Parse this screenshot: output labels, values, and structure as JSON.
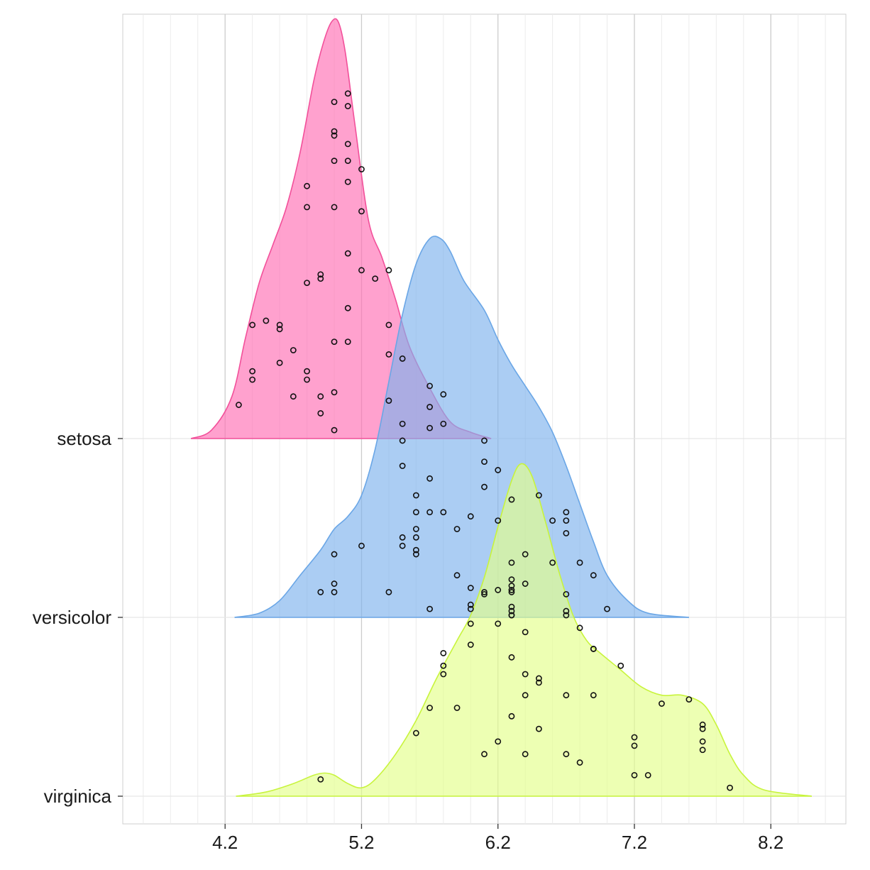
{
  "chart_data": {
    "type": "ridgeline",
    "title": "",
    "xlabel": "",
    "ylabel": "",
    "xlim": [
      3.45,
      8.75
    ],
    "x_ticks": [
      "4.2",
      "5.2",
      "6.2",
      "7.2",
      "8.2"
    ],
    "x_tick_values": [
      4.2,
      5.2,
      6.2,
      7.2,
      8.2
    ],
    "grid": true,
    "legend": "none",
    "series": [
      {
        "name": "setosa",
        "fill": "#ff6eb4",
        "stroke": "#f2509a",
        "density": [
          [
            3.95,
            0
          ],
          [
            4.1,
            0.02
          ],
          [
            4.25,
            0.1
          ],
          [
            4.35,
            0.24
          ],
          [
            4.45,
            0.37
          ],
          [
            4.55,
            0.46
          ],
          [
            4.65,
            0.55
          ],
          [
            4.75,
            0.68
          ],
          [
            4.85,
            0.85
          ],
          [
            4.92,
            0.94
          ],
          [
            4.98,
            0.99
          ],
          [
            5.03,
            0.99
          ],
          [
            5.08,
            0.92
          ],
          [
            5.15,
            0.75
          ],
          [
            5.25,
            0.52
          ],
          [
            5.35,
            0.43
          ],
          [
            5.45,
            0.33
          ],
          [
            5.55,
            0.22
          ],
          [
            5.7,
            0.12
          ],
          [
            5.85,
            0.04
          ],
          [
            6.0,
            0.015
          ],
          [
            6.15,
            0
          ]
        ],
        "points": [
          [
            5.1,
            0.82
          ],
          [
            5.0,
            0.8
          ],
          [
            5.1,
            0.79
          ],
          [
            5.0,
            0.73
          ],
          [
            5.0,
            0.72
          ],
          [
            5.1,
            0.7
          ],
          [
            5.0,
            0.66
          ],
          [
            5.1,
            0.66
          ],
          [
            5.2,
            0.64
          ],
          [
            5.1,
            0.61
          ],
          [
            4.8,
            0.6
          ],
          [
            4.8,
            0.55
          ],
          [
            5.0,
            0.55
          ],
          [
            5.2,
            0.54
          ],
          [
            5.1,
            0.44
          ],
          [
            5.2,
            0.4
          ],
          [
            5.4,
            0.4
          ],
          [
            4.9,
            0.39
          ],
          [
            4.9,
            0.38
          ],
          [
            5.3,
            0.38
          ],
          [
            4.8,
            0.37
          ],
          [
            5.1,
            0.31
          ],
          [
            4.5,
            0.28
          ],
          [
            4.4,
            0.27
          ],
          [
            4.6,
            0.27
          ],
          [
            4.6,
            0.26
          ],
          [
            5.4,
            0.27
          ],
          [
            5.0,
            0.23
          ],
          [
            5.1,
            0.23
          ],
          [
            4.7,
            0.21
          ],
          [
            5.4,
            0.2
          ],
          [
            5.5,
            0.19
          ],
          [
            4.6,
            0.18
          ],
          [
            4.4,
            0.16
          ],
          [
            4.8,
            0.16
          ],
          [
            4.4,
            0.14
          ],
          [
            4.8,
            0.14
          ],
          [
            5.0,
            0.11
          ],
          [
            4.7,
            0.1
          ],
          [
            4.9,
            0.1
          ],
          [
            5.4,
            0.09
          ],
          [
            4.3,
            0.08
          ],
          [
            4.9,
            0.06
          ],
          [
            5.0,
            0.02
          ]
        ]
      },
      {
        "name": "versicolor",
        "fill": "#7eb2ec",
        "stroke": "#6aa6e6",
        "density": [
          [
            4.27,
            0
          ],
          [
            4.45,
            0.01
          ],
          [
            4.6,
            0.04
          ],
          [
            4.75,
            0.1
          ],
          [
            4.9,
            0.16
          ],
          [
            5.0,
            0.21
          ],
          [
            5.1,
            0.24
          ],
          [
            5.2,
            0.29
          ],
          [
            5.3,
            0.4
          ],
          [
            5.4,
            0.56
          ],
          [
            5.5,
            0.72
          ],
          [
            5.6,
            0.84
          ],
          [
            5.7,
            0.9
          ],
          [
            5.78,
            0.9
          ],
          [
            5.85,
            0.87
          ],
          [
            5.95,
            0.8
          ],
          [
            6.1,
            0.73
          ],
          [
            6.2,
            0.66
          ],
          [
            6.3,
            0.6
          ],
          [
            6.4,
            0.55
          ],
          [
            6.5,
            0.5
          ],
          [
            6.6,
            0.44
          ],
          [
            6.7,
            0.36
          ],
          [
            6.8,
            0.27
          ],
          [
            6.9,
            0.18
          ],
          [
            7.0,
            0.1
          ],
          [
            7.15,
            0.04
          ],
          [
            7.3,
            0.01
          ],
          [
            7.6,
            0
          ]
        ],
        "points": [
          [
            5.7,
            0.55
          ],
          [
            5.8,
            0.53
          ],
          [
            5.7,
            0.5
          ],
          [
            5.8,
            0.46
          ],
          [
            5.5,
            0.46
          ],
          [
            5.7,
            0.45
          ],
          [
            5.5,
            0.42
          ],
          [
            6.1,
            0.42
          ],
          [
            6.1,
            0.37
          ],
          [
            5.5,
            0.36
          ],
          [
            6.2,
            0.35
          ],
          [
            5.7,
            0.33
          ],
          [
            6.1,
            0.31
          ],
          [
            5.6,
            0.29
          ],
          [
            6.5,
            0.29
          ],
          [
            6.3,
            0.28
          ],
          [
            5.6,
            0.25
          ],
          [
            5.7,
            0.25
          ],
          [
            5.8,
            0.25
          ],
          [
            6.0,
            0.24
          ],
          [
            6.2,
            0.23
          ],
          [
            6.7,
            0.25
          ],
          [
            6.6,
            0.23
          ],
          [
            6.7,
            0.23
          ],
          [
            5.6,
            0.21
          ],
          [
            5.9,
            0.21
          ],
          [
            6.7,
            0.2
          ],
          [
            5.5,
            0.19
          ],
          [
            5.6,
            0.19
          ],
          [
            5.5,
            0.17
          ],
          [
            5.2,
            0.17
          ],
          [
            5.6,
            0.16
          ],
          [
            5.6,
            0.15
          ],
          [
            5.0,
            0.15
          ],
          [
            6.4,
            0.15
          ],
          [
            6.3,
            0.13
          ],
          [
            6.6,
            0.13
          ],
          [
            6.8,
            0.13
          ],
          [
            5.9,
            0.1
          ],
          [
            6.9,
            0.1
          ],
          [
            6.3,
            0.09
          ],
          [
            5.0,
            0.08
          ],
          [
            6.4,
            0.08
          ],
          [
            6.0,
            0.07
          ],
          [
            5.4,
            0.06
          ],
          [
            4.9,
            0.06
          ],
          [
            5.0,
            0.06
          ],
          [
            6.1,
            0.06
          ],
          [
            6.3,
            0.06
          ],
          [
            6.0,
            0.03
          ],
          [
            5.7,
            0.02
          ],
          [
            7.0,
            0.02
          ],
          [
            6.0,
            0.02
          ]
        ]
      },
      {
        "name": "virginica",
        "fill": "#e3ff8a",
        "stroke": "#c8f43c",
        "density": [
          [
            4.28,
            0
          ],
          [
            4.5,
            0.01
          ],
          [
            4.7,
            0.03
          ],
          [
            4.85,
            0.05
          ],
          [
            4.93,
            0.055
          ],
          [
            5.0,
            0.05
          ],
          [
            5.1,
            0.03
          ],
          [
            5.2,
            0.02
          ],
          [
            5.3,
            0.04
          ],
          [
            5.45,
            0.1
          ],
          [
            5.6,
            0.18
          ],
          [
            5.75,
            0.28
          ],
          [
            5.9,
            0.37
          ],
          [
            6.0,
            0.43
          ],
          [
            6.1,
            0.52
          ],
          [
            6.2,
            0.64
          ],
          [
            6.3,
            0.75
          ],
          [
            6.37,
            0.79
          ],
          [
            6.45,
            0.76
          ],
          [
            6.55,
            0.65
          ],
          [
            6.65,
            0.53
          ],
          [
            6.75,
            0.43
          ],
          [
            6.85,
            0.37
          ],
          [
            6.95,
            0.34
          ],
          [
            7.1,
            0.3
          ],
          [
            7.25,
            0.26
          ],
          [
            7.4,
            0.24
          ],
          [
            7.55,
            0.24
          ],
          [
            7.7,
            0.22
          ],
          [
            7.8,
            0.17
          ],
          [
            7.9,
            0.1
          ],
          [
            8.0,
            0.05
          ],
          [
            8.15,
            0.015
          ],
          [
            8.5,
            0
          ]
        ],
        "points": [
          [
            6.3,
            0.5
          ],
          [
            6.3,
            0.49
          ],
          [
            6.2,
            0.49
          ],
          [
            6.7,
            0.48
          ],
          [
            6.1,
            0.48
          ],
          [
            6.3,
            0.45
          ],
          [
            6.3,
            0.44
          ],
          [
            6.3,
            0.43
          ],
          [
            6.7,
            0.44
          ],
          [
            6.3,
            0.43
          ],
          [
            6.7,
            0.43
          ],
          [
            6.2,
            0.41
          ],
          [
            6.0,
            0.41
          ],
          [
            6.8,
            0.4
          ],
          [
            6.4,
            0.39
          ],
          [
            6.0,
            0.36
          ],
          [
            6.9,
            0.35
          ],
          [
            6.9,
            0.35
          ],
          [
            5.8,
            0.34
          ],
          [
            6.3,
            0.33
          ],
          [
            7.1,
            0.31
          ],
          [
            5.8,
            0.31
          ],
          [
            6.4,
            0.29
          ],
          [
            6.5,
            0.28
          ],
          [
            5.8,
            0.29
          ],
          [
            6.5,
            0.27
          ],
          [
            6.4,
            0.24
          ],
          [
            6.7,
            0.24
          ],
          [
            6.9,
            0.24
          ],
          [
            7.6,
            0.23
          ],
          [
            7.4,
            0.22
          ],
          [
            5.7,
            0.21
          ],
          [
            5.9,
            0.21
          ],
          [
            6.3,
            0.19
          ],
          [
            7.7,
            0.17
          ],
          [
            7.7,
            0.16
          ],
          [
            6.5,
            0.16
          ],
          [
            5.6,
            0.15
          ],
          [
            7.2,
            0.14
          ],
          [
            7.7,
            0.13
          ],
          [
            6.2,
            0.13
          ],
          [
            7.2,
            0.12
          ],
          [
            7.7,
            0.11
          ],
          [
            6.1,
            0.1
          ],
          [
            6.4,
            0.1
          ],
          [
            6.7,
            0.1
          ],
          [
            6.8,
            0.08
          ],
          [
            7.2,
            0.05
          ],
          [
            7.3,
            0.05
          ],
          [
            4.9,
            0.04
          ],
          [
            7.9,
            0.02
          ]
        ]
      }
    ]
  }
}
